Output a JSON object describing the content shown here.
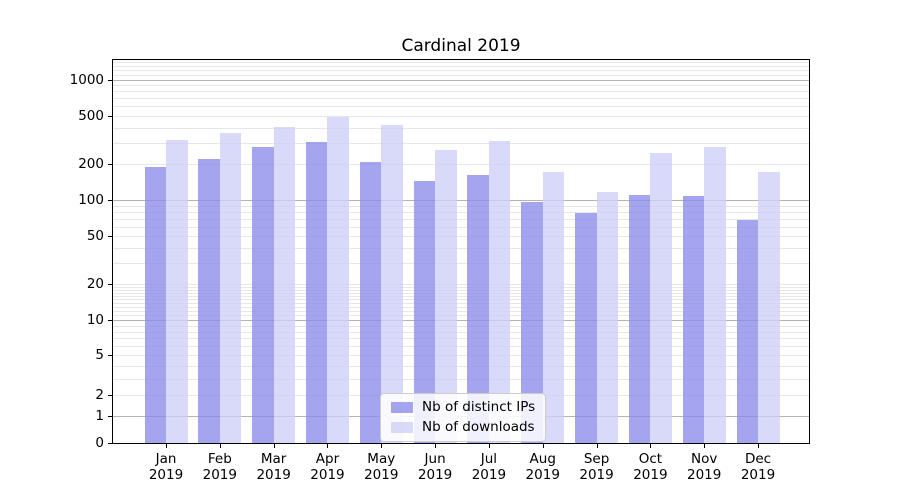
{
  "chart_data": {
    "type": "bar",
    "title": "Cardinal 2019",
    "categories": [
      "Jan 2019",
      "Feb 2019",
      "Mar 2019",
      "Apr 2019",
      "May 2019",
      "Jun 2019",
      "Jul 2019",
      "Aug 2019",
      "Sep 2019",
      "Oct 2019",
      "Nov 2019",
      "Dec 2019"
    ],
    "x_tick_line1": [
      "Jan",
      "Feb",
      "Mar",
      "Apr",
      "May",
      "Jun",
      "Jul",
      "Aug",
      "Sep",
      "Oct",
      "Nov",
      "Dec"
    ],
    "x_tick_line2": "2019",
    "series": [
      {
        "name": "Nb of distinct IPs",
        "color": "rgba(139,139,235,0.78)",
        "values": [
          190,
          218,
          276,
          304,
          206,
          145,
          161,
          96,
          78,
          111,
          108,
          69
        ]
      },
      {
        "name": "Nb of downloads",
        "color": "rgba(206,206,247,0.78)",
        "values": [
          316,
          360,
          408,
          490,
          424,
          260,
          312,
          172,
          118,
          247,
          278,
          172
        ]
      }
    ],
    "xlabel": "",
    "ylabel": "",
    "yscale": "symlog",
    "y_ticks": [
      0,
      1,
      2,
      5,
      10,
      20,
      50,
      100,
      200,
      500,
      1000
    ],
    "y_major_gridlines": [
      1,
      10,
      100,
      1000
    ],
    "ylim": [
      0,
      1500
    ],
    "grid": true,
    "legend_position": "lower center"
  },
  "colors": {
    "background": "#ffffff",
    "spine": "#000000",
    "text": "#000000",
    "major_grid": "#b4b4b4",
    "minor_grid": "#e7e7e7"
  }
}
